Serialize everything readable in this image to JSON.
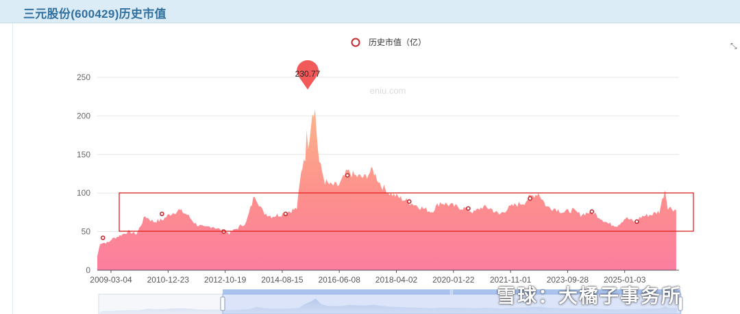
{
  "header": {
    "title": "三元股份(600429)历史市值"
  },
  "watermark": {
    "site": "eniu.com",
    "social": "雪球：大橘子事务所"
  },
  "chart_data": {
    "type": "area",
    "legend": {
      "label": "历史市值（亿）",
      "placement": "top-center"
    },
    "ylim": [
      0,
      250
    ],
    "yticks": [
      0,
      50,
      100,
      150,
      200,
      250
    ],
    "x_tick_labels": [
      "2009-03-04",
      "2010-12-23",
      "2012-10-19",
      "2014-08-15",
      "2016-06-08",
      "2018-04-02",
      "2020-01-22",
      "2021-11-01",
      "2023-09-28",
      "2025-01-03"
    ],
    "max_marker": {
      "date": "2015-06",
      "value": 230.77,
      "label": "230.77"
    },
    "series": [
      {
        "values": [
          {
            "x": "2009-01",
            "y": 18
          },
          {
            "x": "2009-02",
            "y": 35
          },
          {
            "x": "2009-05",
            "y": 36
          },
          {
            "x": "2009-06",
            "y": 40
          },
          {
            "x": "2009-09",
            "y": 45
          },
          {
            "x": "2009-12",
            "y": 50
          },
          {
            "x": "2010-03",
            "y": 47
          },
          {
            "x": "2010-06",
            "y": 70
          },
          {
            "x": "2010-09",
            "y": 63
          },
          {
            "x": "2010-12",
            "y": 65
          },
          {
            "x": "2011-03",
            "y": 73
          },
          {
            "x": "2011-06",
            "y": 78
          },
          {
            "x": "2011-09",
            "y": 72
          },
          {
            "x": "2011-12",
            "y": 60
          },
          {
            "x": "2012-03",
            "y": 55
          },
          {
            "x": "2012-06",
            "y": 57
          },
          {
            "x": "2012-09",
            "y": 52
          },
          {
            "x": "2012-12",
            "y": 48
          },
          {
            "x": "2013-03",
            "y": 55
          },
          {
            "x": "2013-06",
            "y": 62
          },
          {
            "x": "2013-09",
            "y": 98
          },
          {
            "x": "2013-12",
            "y": 75
          },
          {
            "x": "2014-03",
            "y": 70
          },
          {
            "x": "2014-06",
            "y": 72
          },
          {
            "x": "2014-09",
            "y": 76
          },
          {
            "x": "2014-12",
            "y": 80
          },
          {
            "x": "2015-02",
            "y": 140
          },
          {
            "x": "2015-04",
            "y": 175
          },
          {
            "x": "2015-06",
            "y": 225
          },
          {
            "x": "2015-08",
            "y": 140
          },
          {
            "x": "2015-10",
            "y": 115
          },
          {
            "x": "2015-12",
            "y": 110
          },
          {
            "x": "2016-03",
            "y": 110
          },
          {
            "x": "2016-06",
            "y": 128
          },
          {
            "x": "2016-09",
            "y": 122
          },
          {
            "x": "2016-12",
            "y": 120
          },
          {
            "x": "2017-03",
            "y": 130
          },
          {
            "x": "2017-06",
            "y": 110
          },
          {
            "x": "2017-09",
            "y": 100
          },
          {
            "x": "2017-12",
            "y": 95
          },
          {
            "x": "2018-03",
            "y": 90
          },
          {
            "x": "2018-06",
            "y": 85
          },
          {
            "x": "2018-09",
            "y": 80
          },
          {
            "x": "2018-12",
            "y": 76
          },
          {
            "x": "2019-03",
            "y": 88
          },
          {
            "x": "2019-06",
            "y": 85
          },
          {
            "x": "2019-09",
            "y": 82
          },
          {
            "x": "2019-12",
            "y": 80
          },
          {
            "x": "2020-03",
            "y": 75
          },
          {
            "x": "2020-06",
            "y": 82
          },
          {
            "x": "2020-09",
            "y": 80
          },
          {
            "x": "2020-12",
            "y": 72
          },
          {
            "x": "2021-03",
            "y": 80
          },
          {
            "x": "2021-06",
            "y": 85
          },
          {
            "x": "2021-09",
            "y": 88
          },
          {
            "x": "2021-11",
            "y": 95
          },
          {
            "x": "2022-02",
            "y": 100
          },
          {
            "x": "2022-05",
            "y": 82
          },
          {
            "x": "2022-08",
            "y": 80
          },
          {
            "x": "2022-11",
            "y": 75
          },
          {
            "x": "2023-02",
            "y": 78
          },
          {
            "x": "2023-05",
            "y": 72
          },
          {
            "x": "2023-09",
            "y": 76
          },
          {
            "x": "2023-12",
            "y": 68
          },
          {
            "x": "2024-03",
            "y": 60
          },
          {
            "x": "2024-06",
            "y": 58
          },
          {
            "x": "2024-09",
            "y": 68
          },
          {
            "x": "2024-12",
            "y": 63
          },
          {
            "x": "2025-03",
            "y": 70
          },
          {
            "x": "2025-06",
            "y": 72
          },
          {
            "x": "2025-09",
            "y": 76
          },
          {
            "x": "2025-11",
            "y": 105
          },
          {
            "x": "2025-12",
            "y": 82
          },
          {
            "x": "2026-03",
            "y": 78
          }
        ]
      }
    ],
    "markers": [
      {
        "x": "2009-03",
        "y": 42
      },
      {
        "x": "2010-12",
        "y": 73
      },
      {
        "x": "2012-10",
        "y": 50
      },
      {
        "x": "2014-08",
        "y": 73
      },
      {
        "x": "2016-06",
        "y": 123
      },
      {
        "x": "2018-04",
        "y": 89
      },
      {
        "x": "2020-01",
        "y": 80
      },
      {
        "x": "2021-11",
        "y": 93
      },
      {
        "x": "2023-09",
        "y": 76
      },
      {
        "x": "2025-01",
        "y": 63
      }
    ]
  }
}
